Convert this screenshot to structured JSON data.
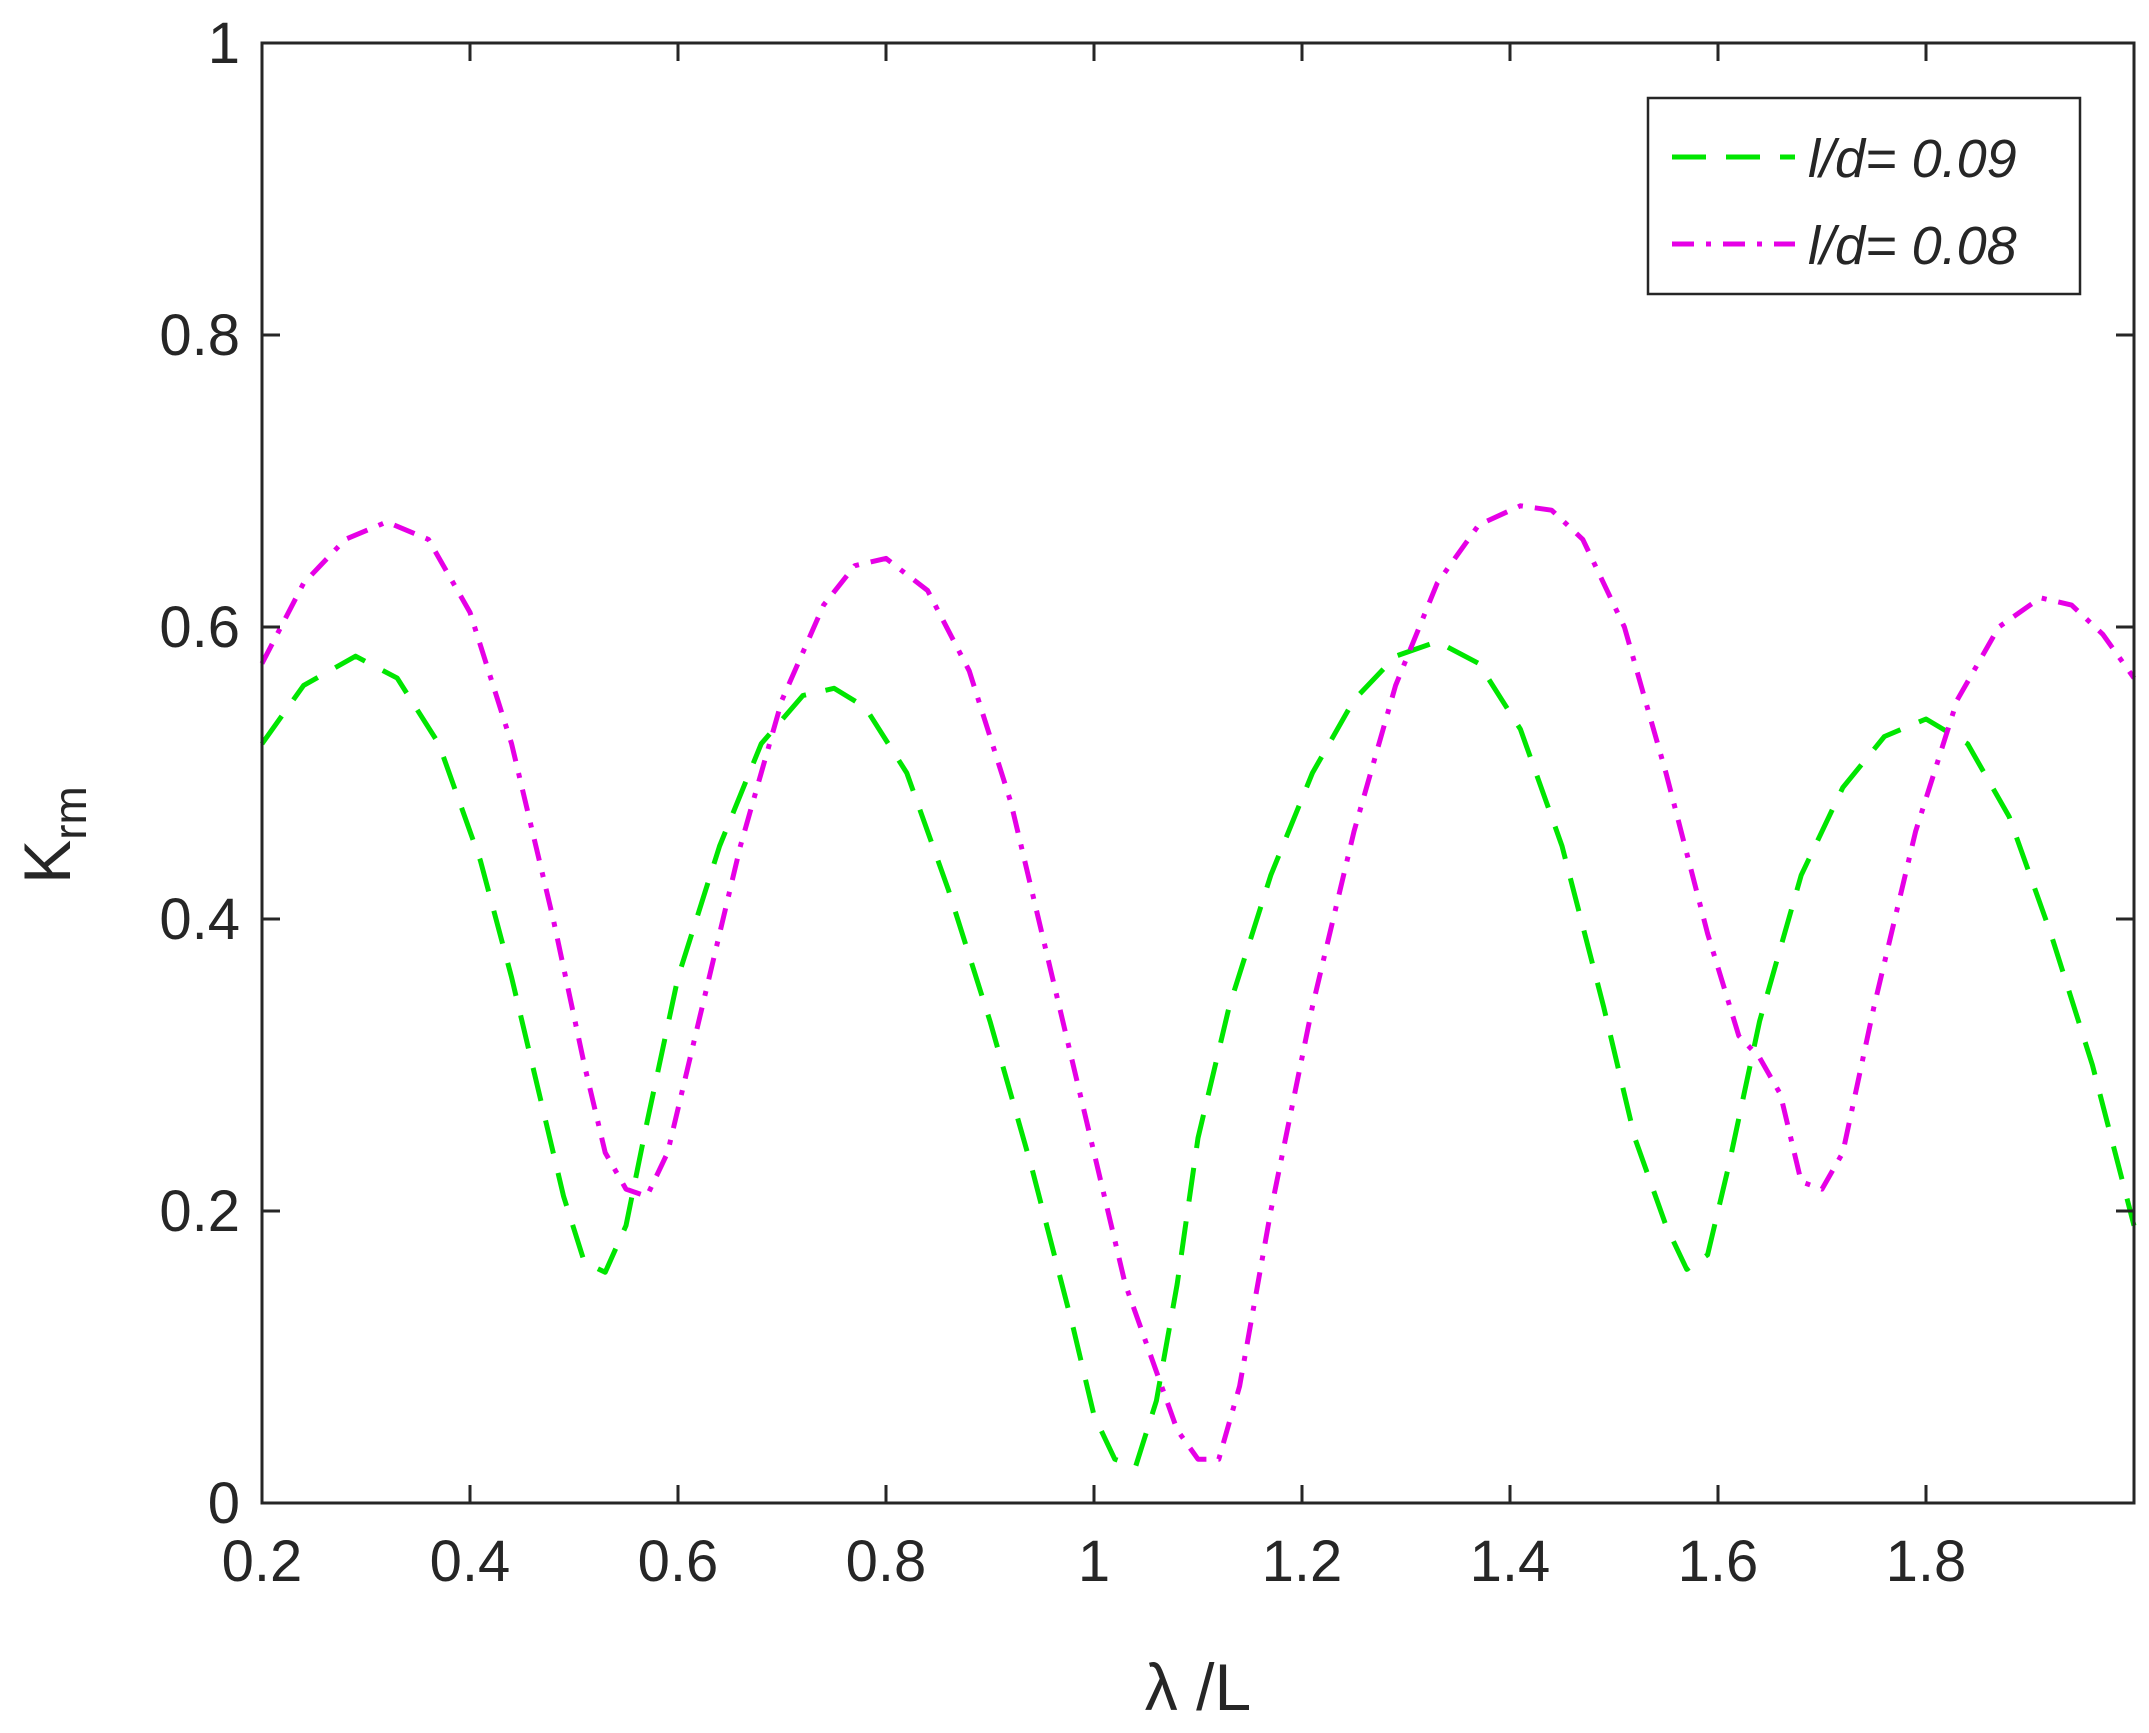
{
  "chart_data": {
    "type": "line",
    "xlabel": "λ /L",
    "ylabel": "K",
    "ylabel_subscript": "rm",
    "xlim": [
      0.2,
      2.0
    ],
    "ylim": [
      0,
      1
    ],
    "xticks": [
      0.2,
      0.4,
      0.6,
      0.8,
      1.0,
      1.2,
      1.4,
      1.6,
      1.8
    ],
    "xtick_labels": [
      "0.2",
      "0.4",
      "0.6",
      "0.8",
      "1",
      "1.2",
      "1.4",
      "1.6",
      "1.8"
    ],
    "yticks": [
      0,
      0.2,
      0.4,
      0.6,
      0.8,
      1.0
    ],
    "ytick_labels": [
      "0",
      "0.2",
      "0.4",
      "0.6",
      "0.8",
      "1"
    ],
    "grid": false,
    "legend_position": "top-right",
    "series": [
      {
        "name": "l/d= 0.09",
        "color": "#00e600",
        "dash": "dashed",
        "x": [
          0.2,
          0.24,
          0.29,
          0.33,
          0.37,
          0.41,
          0.44,
          0.47,
          0.49,
          0.51,
          0.53,
          0.55,
          0.57,
          0.6,
          0.64,
          0.68,
          0.72,
          0.75,
          0.78,
          0.82,
          0.86,
          0.9,
          0.94,
          0.98,
          1.0,
          1.02,
          1.04,
          1.06,
          1.08,
          1.1,
          1.13,
          1.17,
          1.21,
          1.25,
          1.29,
          1.33,
          1.37,
          1.41,
          1.45,
          1.49,
          1.52,
          1.55,
          1.57,
          1.59,
          1.61,
          1.64,
          1.68,
          1.72,
          1.76,
          1.8,
          1.84,
          1.88,
          1.92,
          1.96,
          2.0
        ],
        "y": [
          0.52,
          0.56,
          0.58,
          0.565,
          0.52,
          0.44,
          0.36,
          0.27,
          0.21,
          0.165,
          0.158,
          0.19,
          0.26,
          0.36,
          0.45,
          0.52,
          0.553,
          0.558,
          0.545,
          0.5,
          0.42,
          0.33,
          0.23,
          0.12,
          0.06,
          0.03,
          0.025,
          0.07,
          0.15,
          0.25,
          0.34,
          0.43,
          0.5,
          0.55,
          0.58,
          0.59,
          0.575,
          0.53,
          0.45,
          0.34,
          0.25,
          0.19,
          0.16,
          0.17,
          0.23,
          0.33,
          0.43,
          0.49,
          0.525,
          0.537,
          0.52,
          0.47,
          0.39,
          0.3,
          0.19
        ]
      },
      {
        "name": "l/d= 0.08",
        "color": "#e600e6",
        "dash": "dashdot",
        "x": [
          0.2,
          0.24,
          0.28,
          0.32,
          0.36,
          0.4,
          0.44,
          0.48,
          0.51,
          0.53,
          0.55,
          0.57,
          0.59,
          0.62,
          0.66,
          0.7,
          0.74,
          0.77,
          0.8,
          0.84,
          0.88,
          0.92,
          0.96,
          1.0,
          1.03,
          1.06,
          1.08,
          1.1,
          1.12,
          1.14,
          1.17,
          1.21,
          1.25,
          1.29,
          1.33,
          1.37,
          1.41,
          1.44,
          1.47,
          1.51,
          1.55,
          1.59,
          1.62,
          1.64,
          1.66,
          1.68,
          1.7,
          1.72,
          1.75,
          1.79,
          1.83,
          1.87,
          1.91,
          1.94,
          1.97,
          2.0
        ],
        "y": [
          0.575,
          0.63,
          0.66,
          0.672,
          0.66,
          0.61,
          0.52,
          0.4,
          0.3,
          0.24,
          0.215,
          0.21,
          0.24,
          0.33,
          0.45,
          0.55,
          0.615,
          0.642,
          0.647,
          0.625,
          0.57,
          0.48,
          0.36,
          0.24,
          0.15,
          0.09,
          0.05,
          0.03,
          0.03,
          0.08,
          0.2,
          0.34,
          0.46,
          0.56,
          0.63,
          0.67,
          0.683,
          0.68,
          0.66,
          0.6,
          0.5,
          0.39,
          0.32,
          0.305,
          0.28,
          0.22,
          0.215,
          0.24,
          0.34,
          0.46,
          0.55,
          0.6,
          0.62,
          0.615,
          0.595,
          0.565
        ]
      }
    ]
  }
}
